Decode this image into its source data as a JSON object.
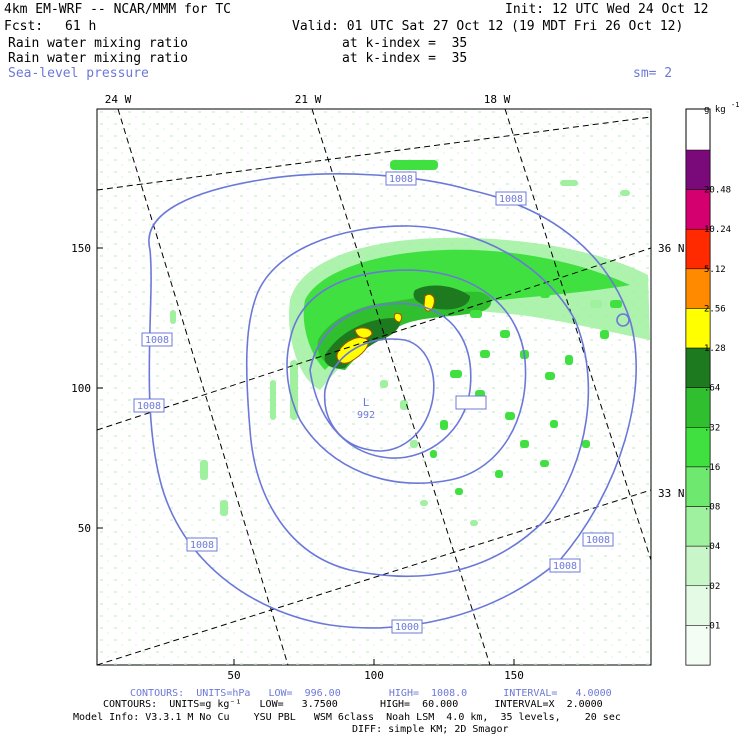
{
  "header": {
    "model": "4km EM-WRF -- NCAR/MMM for TC",
    "init": "Init: 12 UTC Wed 24 Oct 12",
    "fcst_label": "Fcst:",
    "fcst_value": "61 h",
    "valid": "Valid: 01 UTC Sat 27 Oct 12 (19 MDT Fri 26 Oct 12)",
    "field1": "Rain water mixing ratio",
    "field1_level": "at k-index =  35",
    "field2": "Rain water mixing ratio",
    "field2_level": "at k-index =  35",
    "field3": "Sea-level pressure",
    "smoothing": "sm= 2"
  },
  "map": {
    "lon_labels": [
      "24 W",
      "21 W",
      "18 W"
    ],
    "lat_labels": [
      "36 N",
      "33 N"
    ],
    "x_ticks": [
      "50",
      "100",
      "150"
    ],
    "y_ticks": [
      "150",
      "100",
      "50"
    ],
    "low_label": "L",
    "low_value": "992",
    "isobar_labels": [
      "1008",
      "1008",
      "1008",
      "1008",
      "1008",
      "1008",
      "1008",
      "1000"
    ]
  },
  "colorbar": {
    "units": "g kg",
    "units_sup": "-1",
    "levels": [
      "20.48",
      "10.24",
      "5.12",
      "2.56",
      "1.28",
      ".64",
      ".32",
      ".16",
      ".08",
      ".04",
      ".02",
      ".01"
    ],
    "colors": [
      "#7a0a7a",
      "#d40070",
      "#ff2a00",
      "#ff8a00",
      "#ffff00",
      "#1e7a1e",
      "#2fbf2f",
      "#3fe03f",
      "#6fe86f",
      "#9ff09f",
      "#c8f6c8",
      "#e4fae4",
      "#f4fdf4"
    ]
  },
  "footer": {
    "line1": "CONTOURS:  UNITS=hPa   LOW=  996.00        HIGH=  1008.0      INTERVAL=   4.0000",
    "line2": "CONTOURS:  UNITS=g kg⁻¹   LOW=   3.7500       HIGH=  60.000      INTERVAL=X  2.0000",
    "line3": "Model Info: V3.3.1 M No Cu    YSU PBL   WSM 6class  Noah LSM  4.0 km,  35 levels,    20 sec",
    "line4": "DIFF: simple KM; 2D Smagor"
  }
}
